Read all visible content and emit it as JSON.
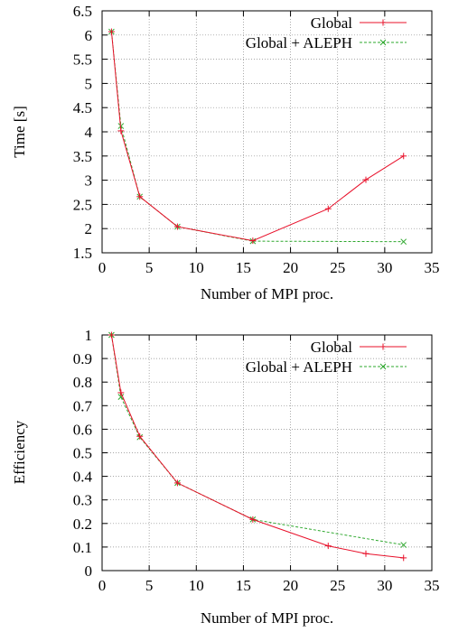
{
  "chart_data": [
    {
      "type": "line",
      "xlabel": "Number of MPI proc.",
      "ylabel": "Time [s]",
      "xlim": [
        0,
        35
      ],
      "ylim": [
        1.5,
        6.5
      ],
      "xticks": [
        0,
        5,
        10,
        15,
        20,
        25,
        30,
        35
      ],
      "yticks": [
        1.5,
        2,
        2.5,
        3,
        3.5,
        4,
        4.5,
        5,
        5.5,
        6,
        6.5
      ],
      "grid": true,
      "legend_position": "top-right",
      "series": [
        {
          "name": "Global",
          "color": "#e8102a",
          "marker": "plus",
          "dashed": false,
          "x": [
            1,
            2,
            4,
            8,
            16,
            24,
            28,
            32
          ],
          "y": [
            6.07,
            4.02,
            2.66,
            2.04,
            1.75,
            2.41,
            3.01,
            3.5
          ]
        },
        {
          "name": "Global + ALEPH",
          "color": "#2ea82e",
          "marker": "x",
          "dashed": true,
          "x": [
            1,
            2,
            4,
            8,
            16,
            32
          ],
          "y": [
            6.07,
            4.12,
            2.66,
            2.04,
            1.74,
            1.73
          ]
        }
      ]
    },
    {
      "type": "line",
      "xlabel": "Number of MPI proc.",
      "ylabel": "Efficiency",
      "xlim": [
        0,
        35
      ],
      "ylim": [
        0,
        1
      ],
      "xticks": [
        0,
        5,
        10,
        15,
        20,
        25,
        30,
        35
      ],
      "yticks": [
        0,
        0.1,
        0.2,
        0.3,
        0.4,
        0.5,
        0.6,
        0.7,
        0.8,
        0.9,
        1
      ],
      "grid": true,
      "legend_position": "top-right",
      "series": [
        {
          "name": "Global",
          "color": "#e8102a",
          "marker": "plus",
          "dashed": false,
          "x": [
            1,
            2,
            4,
            8,
            16,
            24,
            28,
            32
          ],
          "y": [
            1.0,
            0.755,
            0.57,
            0.372,
            0.217,
            0.105,
            0.072,
            0.054
          ]
        },
        {
          "name": "Global + ALEPH",
          "color": "#2ea82e",
          "marker": "x",
          "dashed": true,
          "x": [
            1,
            2,
            4,
            8,
            16,
            32
          ],
          "y": [
            1.0,
            0.737,
            0.566,
            0.372,
            0.217,
            0.109
          ]
        }
      ]
    }
  ]
}
